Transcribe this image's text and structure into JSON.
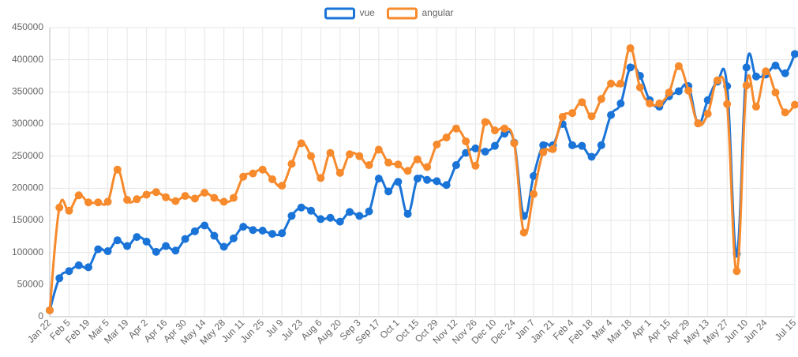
{
  "chart_data": {
    "type": "line",
    "categories": [
      "Jan 22",
      null,
      "Feb 5",
      null,
      "Feb 19",
      null,
      "Mar 5",
      null,
      "Mar 19",
      null,
      "Apr 2",
      null,
      "Apr 16",
      null,
      "Apr 30",
      null,
      "May 14",
      null,
      "May 28",
      null,
      "Jun 11",
      null,
      "Jun 25",
      null,
      "Jul 9",
      null,
      "Jul 23",
      null,
      "Aug 6",
      null,
      "Aug 20",
      null,
      "Sep 3",
      null,
      "Sep 17",
      null,
      "Oct 1",
      null,
      "Oct 15",
      null,
      "Oct 29",
      null,
      "Nov 12",
      null,
      "Nov 26",
      null,
      "Dec 10",
      null,
      "Dec 24",
      null,
      "Jan 7",
      null,
      "Jan 21",
      null,
      "Feb 4",
      null,
      "Feb 18",
      null,
      "Mar 4",
      null,
      "Mar 18",
      null,
      "Apr 1",
      null,
      "Apr 15",
      null,
      "Apr 29",
      null,
      "May 13",
      null,
      "May 27",
      null,
      "Jun 10",
      null,
      "Jun 24",
      null,
      null,
      "Jul 15"
    ],
    "series": [
      {
        "name": "vue",
        "color": "#1a74d8",
        "values": [
          10000,
          60000,
          71000,
          80000,
          77000,
          105000,
          102000,
          119000,
          110000,
          124000,
          117000,
          101000,
          110000,
          103000,
          121000,
          133000,
          142000,
          126000,
          109000,
          122000,
          140000,
          135000,
          134000,
          129000,
          130000,
          157000,
          170000,
          165000,
          152000,
          154000,
          148000,
          163000,
          157000,
          164000,
          215000,
          195000,
          210000,
          160000,
          215000,
          213000,
          211000,
          205000,
          236000,
          255000,
          262000,
          257000,
          266000,
          285000,
          271000,
          157000,
          219000,
          267000,
          267000,
          300000,
          267000,
          266000,
          249000,
          267000,
          314000,
          332000,
          388000,
          375000,
          337000,
          327000,
          343000,
          351000,
          359000,
          301000,
          337000,
          366000,
          359000,
          98000,
          388000,
          374000,
          377000,
          391000,
          379000,
          409000
        ]
      },
      {
        "name": "angular",
        "color": "#f68a2c",
        "values": [
          10000,
          170000,
          165000,
          189000,
          178000,
          178000,
          179000,
          229000,
          182000,
          183000,
          190000,
          194000,
          186000,
          180000,
          188000,
          184000,
          193000,
          185000,
          179000,
          185000,
          218000,
          223000,
          229000,
          214000,
          204000,
          238000,
          270000,
          250000,
          216000,
          255000,
          224000,
          253000,
          250000,
          236000,
          260000,
          240000,
          237000,
          227000,
          245000,
          233000,
          268000,
          279000,
          293000,
          273000,
          235000,
          303000,
          290000,
          293000,
          270000,
          131000,
          191000,
          256000,
          261000,
          311000,
          317000,
          334000,
          312000,
          339000,
          363000,
          363000,
          418000,
          357000,
          332000,
          332000,
          349000,
          390000,
          352000,
          301000,
          316000,
          368000,
          331000,
          71000,
          360000,
          327000,
          382000,
          349000,
          318000,
          330000
        ]
      }
    ],
    "ylim": [
      0,
      450000
    ],
    "yticks": [
      0,
      50000,
      100000,
      150000,
      200000,
      250000,
      300000,
      350000,
      400000,
      450000
    ],
    "grid": true,
    "legend": "top"
  }
}
